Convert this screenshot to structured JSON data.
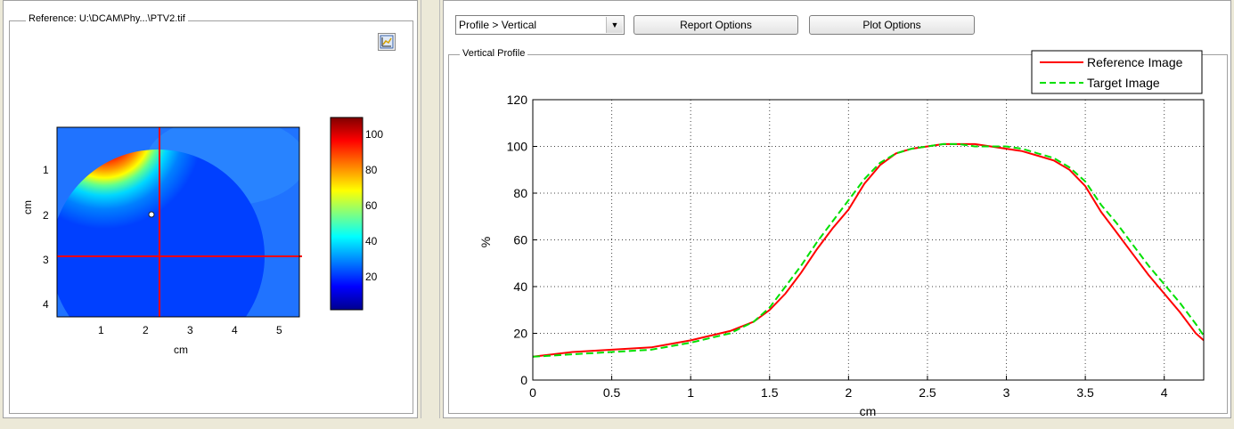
{
  "left_panel": {
    "group_title": "Reference: U:\\DCAM\\Phy...\\PTV2.tif",
    "tool_icon": "ruler-plot-icon",
    "image_xticks": [
      "1",
      "2",
      "3",
      "4",
      "5"
    ],
    "image_yticks": [
      "1",
      "2",
      "3",
      "4"
    ],
    "image_xlabel": "cm",
    "image_ylabel": "cm",
    "colorbar_ticks": [
      "100",
      "80",
      "60",
      "40",
      "20"
    ]
  },
  "right_panel": {
    "profile_select": "Profile > Vertical",
    "report_button": "Report Options",
    "plot_button": "Plot Options",
    "group_title": "Vertical Profile"
  },
  "chart_data": {
    "type": "line",
    "xlabel": "cm",
    "ylabel": "%",
    "xlim": [
      0,
      4.25
    ],
    "ylim": [
      0,
      120
    ],
    "xticks": [
      "0",
      "0.5",
      "1",
      "1.5",
      "2",
      "2.5",
      "3",
      "3.5",
      "4"
    ],
    "yticks": [
      "0",
      "20",
      "40",
      "60",
      "80",
      "100",
      "120"
    ],
    "grid": true,
    "legend_position": "top-right",
    "series": [
      {
        "name": "Reference Image",
        "color": "#ff0000",
        "dash": "solid",
        "x": [
          0,
          0.25,
          0.5,
          0.75,
          1.0,
          1.25,
          1.4,
          1.5,
          1.6,
          1.7,
          1.8,
          1.9,
          2.0,
          2.1,
          2.2,
          2.3,
          2.4,
          2.5,
          2.6,
          2.7,
          2.8,
          2.9,
          3.0,
          3.1,
          3.2,
          3.3,
          3.4,
          3.5,
          3.6,
          3.7,
          3.8,
          3.9,
          4.0,
          4.1,
          4.2,
          4.25
        ],
        "y": [
          10,
          12,
          13,
          14,
          17,
          21,
          25,
          30,
          37,
          46,
          56,
          65,
          73,
          84,
          92,
          97,
          99,
          100,
          101,
          101,
          101,
          100,
          99,
          98,
          96,
          94,
          90,
          83,
          72,
          63,
          54,
          45,
          37,
          29,
          20,
          17
        ]
      },
      {
        "name": "Target Image",
        "color": "#00e000",
        "dash": "dashed",
        "x": [
          0,
          0.25,
          0.5,
          0.75,
          1.0,
          1.25,
          1.4,
          1.5,
          1.6,
          1.7,
          1.8,
          1.9,
          2.0,
          2.1,
          2.2,
          2.3,
          2.4,
          2.5,
          2.6,
          2.7,
          2.8,
          2.9,
          3.0,
          3.1,
          3.2,
          3.3,
          3.4,
          3.5,
          3.6,
          3.7,
          3.8,
          3.9,
          4.0,
          4.1,
          4.2,
          4.25
        ],
        "y": [
          10,
          11,
          12,
          13,
          16,
          20,
          25,
          31,
          40,
          49,
          59,
          68,
          77,
          86,
          93,
          97,
          99,
          100,
          101,
          101,
          100,
          100,
          100,
          99,
          97,
          95,
          91,
          85,
          75,
          67,
          58,
          49,
          41,
          33,
          24,
          19
        ]
      }
    ]
  },
  "colors": {
    "window_bg": "#ece9d8",
    "panel_bg": "#ffffff",
    "crosshair": "#ff0000"
  }
}
